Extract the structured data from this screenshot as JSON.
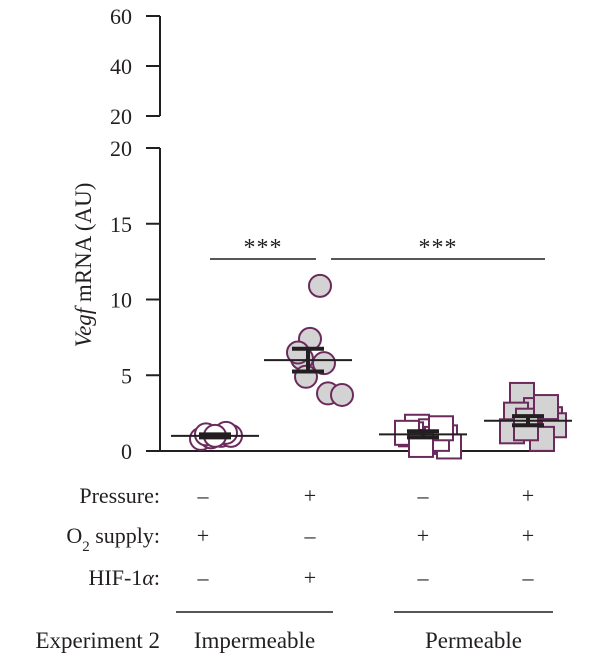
{
  "chart_data": {
    "type": "scatter",
    "ylabel_italic": "Vegf",
    "ylabel_rest": " mRNA (AU)",
    "y_axis_upper": {
      "ylim": [
        20,
        60
      ],
      "ticks": [
        20,
        40,
        60
      ]
    },
    "y_axis_lower": {
      "ylim": [
        0,
        20
      ],
      "ticks": [
        0,
        5,
        10,
        15,
        20
      ]
    },
    "groups": [
      {
        "marker": "circle",
        "fill": "#ffffff",
        "stroke": "#6b2a5c",
        "mean": 1.0,
        "sem": 0.1,
        "points": [
          0.8,
          0.9,
          1.0,
          1.0,
          1.1,
          1.2,
          1.0
        ]
      },
      {
        "marker": "circle",
        "fill": "#d3d3d3",
        "stroke": "#6b2a5c",
        "mean": 6.0,
        "sem": 0.75,
        "points": [
          10.9,
          7.4,
          6.1,
          5.8,
          4.9,
          3.8,
          3.7,
          6.5
        ]
      },
      {
        "marker": "square",
        "fill": "#ffffff",
        "stroke": "#6b2a5c",
        "mean": 1.1,
        "sem": 0.2,
        "points": [
          1.6,
          1.3,
          1.1,
          0.9,
          0.6,
          0.3,
          1.2,
          0.8,
          1.5,
          0.4
        ]
      },
      {
        "marker": "square",
        "fill": "#d3d3d3",
        "stroke": "#6b2a5c",
        "mean": 2.0,
        "sem": 0.3,
        "points": [
          3.7,
          2.7,
          2.4,
          2.1,
          2.0,
          1.7,
          1.3,
          0.8,
          2.9,
          1.5
        ]
      }
    ],
    "significance": [
      {
        "label": "***",
        "from_group": 0,
        "to_group": 1,
        "y": 13.6
      },
      {
        "label": "***",
        "from_group": 1,
        "to_group": 3,
        "y": 13.6
      }
    ],
    "conditions": [
      {
        "label": "Pressure:",
        "values": [
          "–",
          "+",
          "–",
          "+"
        ]
      },
      {
        "label": "supply:",
        "prefix": "O",
        "subscript": "2",
        "values": [
          "+",
          "–",
          "+",
          "+"
        ]
      },
      {
        "label": "HIF-1",
        "suffix_italic": "α",
        "suffix": ":",
        "values": [
          "–",
          "+",
          "–",
          "–"
        ]
      }
    ],
    "experiment_label": "Experiment 2",
    "group_labels": [
      {
        "label": "Impermeable",
        "groups": [
          0,
          1
        ]
      },
      {
        "label": "Permeable",
        "groups": [
          2,
          3
        ]
      }
    ]
  }
}
